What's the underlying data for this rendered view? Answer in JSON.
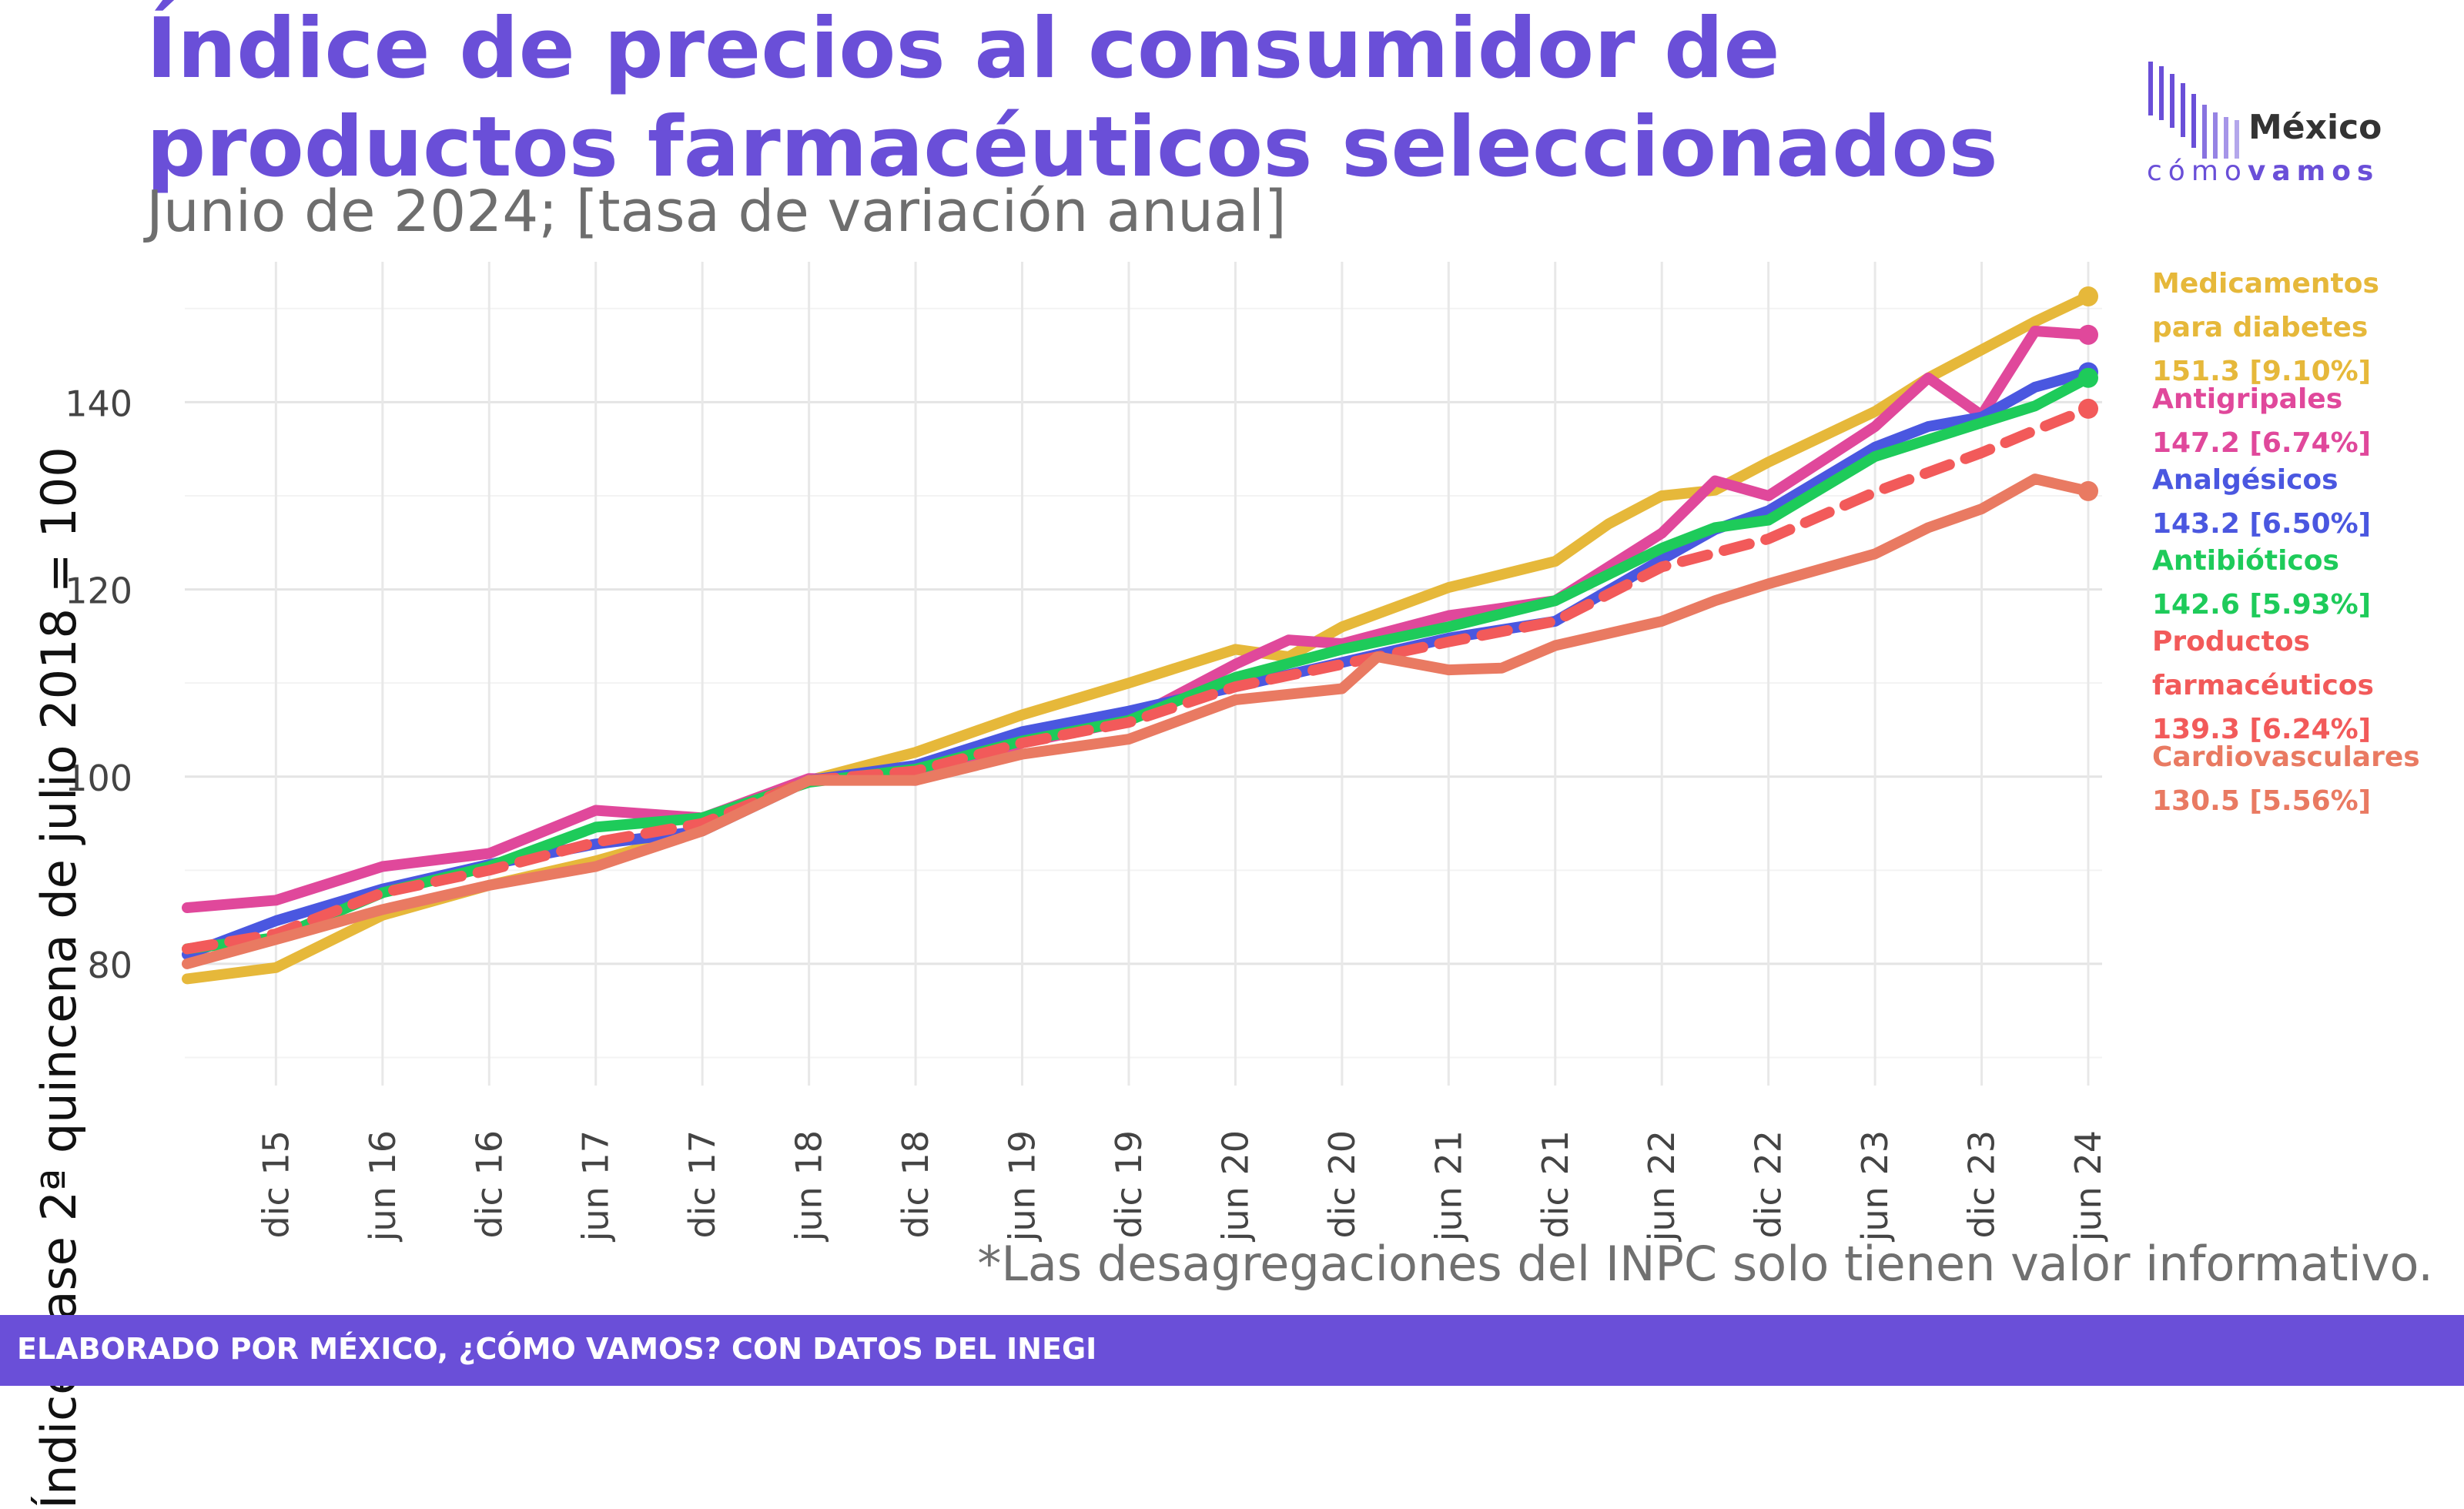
{
  "header": {
    "title": "Índice de precios al consumidor de productos farmacéuticos seleccionados",
    "subtitle": "Junio de 2024; [tasa de variación anual]"
  },
  "logo": {
    "word1": "México",
    "word2a": "cómo",
    "word2b": "vamos",
    "color": "#6a4fd8"
  },
  "note": "*Las desagregaciones del INPC solo tienen valor informativo.",
  "footer": {
    "text": "ELABORADO POR MÉXICO, ¿CÓMO VAMOS? CON DATOS DEL INEGI",
    "color": "#6a4fd8"
  },
  "chart_data": {
    "type": "line",
    "ylabel": "Índice base 2ª quincena de julio 2018 = 100",
    "xlabel": "",
    "x_start": "2015-07",
    "x_end": "2024-06",
    "ylim": [
      67,
      155
    ],
    "yticks": [
      80,
      100,
      120,
      140
    ],
    "xticks": [
      {
        "label": "dic 15",
        "date": "2015-12"
      },
      {
        "label": "jun 16",
        "date": "2016-06"
      },
      {
        "label": "dic 16",
        "date": "2016-12"
      },
      {
        "label": "jun 17",
        "date": "2017-06"
      },
      {
        "label": "dic 17",
        "date": "2017-12"
      },
      {
        "label": "jun 18",
        "date": "2018-06"
      },
      {
        "label": "dic 18",
        "date": "2018-12"
      },
      {
        "label": "jun 19",
        "date": "2019-06"
      },
      {
        "label": "dic 19",
        "date": "2019-12"
      },
      {
        "label": "jun 20",
        "date": "2020-06"
      },
      {
        "label": "dic 20",
        "date": "2020-12"
      },
      {
        "label": "jun 21",
        "date": "2021-06"
      },
      {
        "label": "dic 21",
        "date": "2021-12"
      },
      {
        "label": "jun 22",
        "date": "2022-06"
      },
      {
        "label": "dic 22",
        "date": "2022-12"
      },
      {
        "label": "jun 23",
        "date": "2023-06"
      },
      {
        "label": "dic 23",
        "date": "2023-12"
      },
      {
        "label": "jun 24",
        "date": "2024-06"
      }
    ],
    "grid": true,
    "series": [
      {
        "name_lines": [
          "Medicamentos",
          "para diabetes"
        ],
        "value_label": "151.3 [9.10%]",
        "color": "#e6b83a",
        "dashed": false,
        "points": [
          [
            "2015-07",
            78.4
          ],
          [
            "2015-12",
            79.6
          ],
          [
            "2016-06",
            85.2
          ],
          [
            "2016-12",
            88.4
          ],
          [
            "2017-06",
            91.0
          ],
          [
            "2017-12",
            94.2
          ],
          [
            "2018-06",
            99.6
          ],
          [
            "2018-12",
            102.6
          ],
          [
            "2019-06",
            106.6
          ],
          [
            "2019-12",
            110.0
          ],
          [
            "2020-06",
            113.6
          ],
          [
            "2020-09",
            112.8
          ],
          [
            "2020-12",
            116.0
          ],
          [
            "2021-06",
            120.2
          ],
          [
            "2021-12",
            123.0
          ],
          [
            "2022-03",
            127.0
          ],
          [
            "2022-06",
            130.0
          ],
          [
            "2022-09",
            130.6
          ],
          [
            "2022-12",
            133.6
          ],
          [
            "2023-06",
            139.0
          ],
          [
            "2023-09",
            142.6
          ],
          [
            "2023-12",
            145.6
          ],
          [
            "2024-03",
            148.6
          ],
          [
            "2024-06",
            151.3
          ]
        ]
      },
      {
        "name_lines": [
          "Antigripales"
        ],
        "value_label": "147.2 [6.74%]",
        "color": "#e0489b",
        "dashed": false,
        "points": [
          [
            "2015-07",
            86.0
          ],
          [
            "2015-12",
            86.8
          ],
          [
            "2016-06",
            90.4
          ],
          [
            "2016-12",
            91.8
          ],
          [
            "2017-06",
            96.4
          ],
          [
            "2017-12",
            95.6
          ],
          [
            "2018-06",
            99.8
          ],
          [
            "2018-12",
            99.6
          ],
          [
            "2019-06",
            103.6
          ],
          [
            "2019-12",
            106.0
          ],
          [
            "2020-06",
            112.0
          ],
          [
            "2020-09",
            114.6
          ],
          [
            "2020-12",
            114.2
          ],
          [
            "2021-06",
            117.2
          ],
          [
            "2021-12",
            118.8
          ],
          [
            "2022-06",
            126.0
          ],
          [
            "2022-09",
            131.6
          ],
          [
            "2022-12",
            130.0
          ],
          [
            "2023-06",
            137.4
          ],
          [
            "2023-09",
            142.6
          ],
          [
            "2023-12",
            138.6
          ],
          [
            "2024-03",
            147.6
          ],
          [
            "2024-06",
            147.2
          ]
        ]
      },
      {
        "name_lines": [
          "Analgésicos"
        ],
        "value_label": "143.2 [6.50%]",
        "color": "#4a57e0",
        "dashed": false,
        "points": [
          [
            "2015-07",
            81.0
          ],
          [
            "2015-12",
            84.6
          ],
          [
            "2016-06",
            88.0
          ],
          [
            "2016-12",
            90.6
          ],
          [
            "2017-06",
            92.8
          ],
          [
            "2017-12",
            94.2
          ],
          [
            "2018-06",
            99.6
          ],
          [
            "2018-12",
            101.2
          ],
          [
            "2019-06",
            104.8
          ],
          [
            "2019-12",
            107.0
          ],
          [
            "2020-06",
            109.6
          ],
          [
            "2020-12",
            112.2
          ],
          [
            "2021-06",
            114.8
          ],
          [
            "2021-12",
            116.6
          ],
          [
            "2022-06",
            123.2
          ],
          [
            "2022-09",
            126.4
          ],
          [
            "2022-12",
            128.4
          ],
          [
            "2023-06",
            135.2
          ],
          [
            "2023-09",
            137.4
          ],
          [
            "2023-12",
            138.4
          ],
          [
            "2024-03",
            141.6
          ],
          [
            "2024-06",
            143.2
          ]
        ]
      },
      {
        "name_lines": [
          "Antibióticos"
        ],
        "value_label": "142.6 [5.93%]",
        "color": "#1ecb5a",
        "dashed": false,
        "points": [
          [
            "2015-07",
            81.6
          ],
          [
            "2015-12",
            82.8
          ],
          [
            "2016-06",
            87.6
          ],
          [
            "2016-12",
            90.4
          ],
          [
            "2017-06",
            94.6
          ],
          [
            "2017-12",
            95.6
          ],
          [
            "2018-06",
            99.4
          ],
          [
            "2018-12",
            100.8
          ],
          [
            "2019-06",
            103.8
          ],
          [
            "2019-12",
            106.0
          ],
          [
            "2020-06",
            110.6
          ],
          [
            "2020-12",
            113.6
          ],
          [
            "2021-06",
            116.0
          ],
          [
            "2021-12",
            118.8
          ],
          [
            "2022-06",
            124.4
          ],
          [
            "2022-09",
            126.6
          ],
          [
            "2022-12",
            127.4
          ],
          [
            "2023-06",
            134.2
          ],
          [
            "2023-09",
            136.0
          ],
          [
            "2023-12",
            137.8
          ],
          [
            "2024-03",
            139.6
          ],
          [
            "2024-06",
            142.6
          ]
        ]
      },
      {
        "name_lines": [
          "Productos",
          "farmacéuticos"
        ],
        "value_label": "139.3 [6.24%]",
        "color": "#f25a5a",
        "dashed": true,
        "points": [
          [
            "2015-07",
            81.6
          ],
          [
            "2015-12",
            83.2
          ],
          [
            "2016-06",
            87.6
          ],
          [
            "2016-12",
            90.0
          ],
          [
            "2017-06",
            93.0
          ],
          [
            "2017-12",
            95.0
          ],
          [
            "2018-06",
            99.6
          ],
          [
            "2018-12",
            100.6
          ],
          [
            "2019-06",
            103.6
          ],
          [
            "2019-12",
            105.8
          ],
          [
            "2020-06",
            109.6
          ],
          [
            "2020-12",
            112.0
          ],
          [
            "2021-06",
            114.4
          ],
          [
            "2021-12",
            116.6
          ],
          [
            "2022-06",
            122.4
          ],
          [
            "2022-12",
            125.4
          ],
          [
            "2023-06",
            130.4
          ],
          [
            "2023-12",
            134.6
          ],
          [
            "2024-03",
            137.0
          ],
          [
            "2024-06",
            139.3
          ]
        ]
      },
      {
        "name_lines": [
          "Cardiovasculares"
        ],
        "value_label": "130.5 [5.56%]",
        "color": "#e97a62",
        "dashed": false,
        "points": [
          [
            "2015-07",
            80.0
          ],
          [
            "2015-12",
            82.6
          ],
          [
            "2016-06",
            85.8
          ],
          [
            "2016-12",
            88.4
          ],
          [
            "2017-06",
            90.4
          ],
          [
            "2017-12",
            94.2
          ],
          [
            "2018-06",
            99.6
          ],
          [
            "2018-12",
            99.6
          ],
          [
            "2019-06",
            102.4
          ],
          [
            "2019-12",
            104.0
          ],
          [
            "2020-06",
            108.2
          ],
          [
            "2020-12",
            109.4
          ],
          [
            "2021-02",
            112.8
          ],
          [
            "2021-06",
            111.4
          ],
          [
            "2021-09",
            111.6
          ],
          [
            "2021-12",
            114.0
          ],
          [
            "2022-06",
            116.6
          ],
          [
            "2022-09",
            118.8
          ],
          [
            "2022-12",
            120.6
          ],
          [
            "2023-06",
            123.8
          ],
          [
            "2023-09",
            126.6
          ],
          [
            "2023-12",
            128.6
          ],
          [
            "2024-03",
            131.8
          ],
          [
            "2024-06",
            130.5
          ]
        ]
      }
    ]
  }
}
